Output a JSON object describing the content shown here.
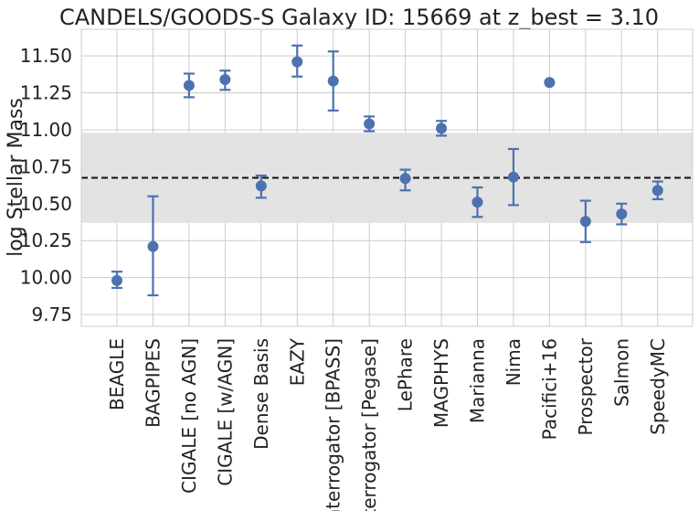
{
  "chart_data": {
    "type": "scatter",
    "title": "CANDELS/GOODS-S Galaxy ID: 15669 at z_best = 3.10",
    "xlabel": "",
    "ylabel": "log Stellar Mass",
    "ylim": [
      9.67,
      11.68
    ],
    "yticks": [
      "9.75",
      "10.00",
      "10.25",
      "10.50",
      "10.75",
      "11.00",
      "11.25",
      "11.50"
    ],
    "grid": true,
    "categories": [
      "BEAGLE",
      "BAGPIPES",
      "CIGALE [no AGN]",
      "CIGALE [w/AGN]",
      "Dense Basis",
      "EAZY",
      "Interrogator [BPASS]",
      "Interrogator [Pegase]",
      "LePhare",
      "MAGPHYS",
      "Marianna",
      "Nima",
      "Pacifici+16",
      "Prospector",
      "Salmon",
      "SpeedyMC"
    ],
    "values": [
      9.98,
      10.21,
      11.3,
      11.34,
      10.62,
      11.46,
      11.33,
      11.04,
      10.67,
      11.01,
      10.51,
      10.68,
      11.32,
      10.38,
      10.43,
      10.59
    ],
    "err_low": [
      9.93,
      9.88,
      11.22,
      11.27,
      10.54,
      11.36,
      11.13,
      10.99,
      10.59,
      10.96,
      10.41,
      10.49,
      null,
      10.24,
      10.36,
      10.53
    ],
    "err_high": [
      10.04,
      10.55,
      11.38,
      11.4,
      10.69,
      11.57,
      11.53,
      11.09,
      10.73,
      11.06,
      10.61,
      10.87,
      null,
      10.52,
      10.5,
      10.65
    ],
    "median_line": 10.675,
    "band": [
      10.37,
      10.98
    ],
    "colors": {
      "marker": "#4c72b0",
      "band": "#e3e3e3",
      "median": "#111111",
      "grid": "#cccccc",
      "text": "#222222"
    }
  }
}
